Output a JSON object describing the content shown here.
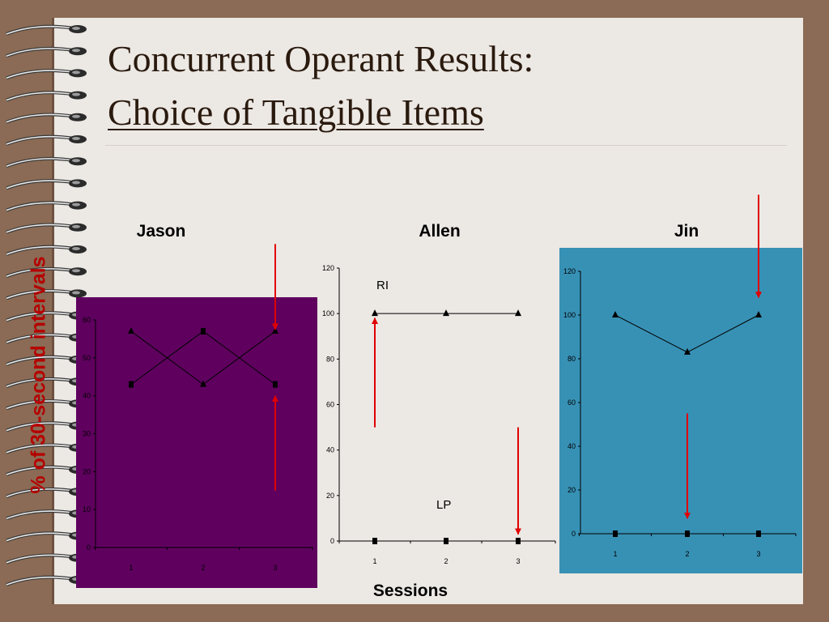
{
  "slide": {
    "title_line1": "Concurrent Operant Results:",
    "title_line2": "Choice of Tangible Items",
    "y_axis_label": "% of 30-second intervals",
    "x_axis_label": "Sessions"
  },
  "colors": {
    "background": "#8b6b55",
    "paper": "#ece8e4",
    "arrow": "#e00000",
    "y_axis_label": "#b50000"
  },
  "icons": {
    "spiral": "spiral-binding-coil-icon"
  },
  "chart_data": [
    {
      "type": "line",
      "title": "Jason",
      "background": "#5f005f",
      "foreground": "#000000",
      "x": [
        1,
        2,
        3
      ],
      "x_tick_labels": [
        "1",
        "2",
        "3"
      ],
      "ylim": [
        0,
        60
      ],
      "y_ticks": [
        0,
        10,
        20,
        30,
        40,
        50,
        60
      ],
      "series": [
        {
          "values": [
            57,
            43,
            57
          ],
          "marker": "triangle"
        },
        {
          "values": [
            43,
            57,
            43
          ],
          "marker": "square"
        }
      ],
      "arrows": [
        {
          "x": 3,
          "from": 80,
          "to": 57.5,
          "direction": "down"
        },
        {
          "x": 3,
          "from": 15,
          "to": 40,
          "direction": "up"
        }
      ]
    },
    {
      "type": "line",
      "title": "Allen",
      "background": "#ece8e4",
      "foreground": "#000000",
      "x": [
        1,
        2,
        3
      ],
      "x_tick_labels": [
        "1",
        "2",
        "3"
      ],
      "ylim": [
        0,
        120
      ],
      "y_ticks": [
        0,
        20,
        40,
        60,
        80,
        100,
        120
      ],
      "series": [
        {
          "name": "RI",
          "values": [
            100,
            100,
            100
          ],
          "marker": "triangle"
        },
        {
          "name": "LP",
          "values": [
            0,
            0,
            0
          ],
          "marker": "square"
        }
      ],
      "arrows": [
        {
          "x": 1,
          "from": 50,
          "to": 98,
          "direction": "up"
        },
        {
          "x": 3,
          "from": 50,
          "to": 3,
          "direction": "down"
        }
      ]
    },
    {
      "type": "line",
      "title": "Jin",
      "background": "#3791b5",
      "foreground": "#000000",
      "x": [
        1,
        2,
        3
      ],
      "x_tick_labels": [
        "1",
        "2",
        "3"
      ],
      "ylim": [
        0,
        120
      ],
      "y_ticks": [
        0,
        20,
        40,
        60,
        80,
        100,
        120
      ],
      "series": [
        {
          "values": [
            100,
            83,
            100
          ],
          "marker": "triangle"
        },
        {
          "values": [
            0,
            0,
            0
          ],
          "marker": "square"
        }
      ],
      "arrows": [
        {
          "x": 3,
          "from": 155,
          "to": 108,
          "direction": "down"
        },
        {
          "x": 2,
          "from": 55,
          "to": 7,
          "direction": "up-to-down"
        }
      ]
    }
  ]
}
